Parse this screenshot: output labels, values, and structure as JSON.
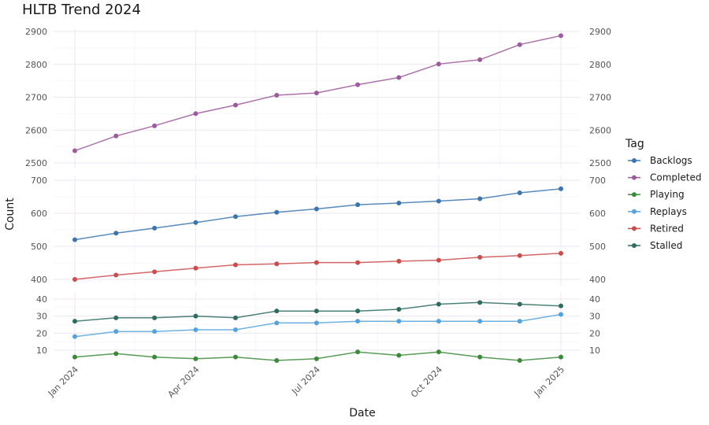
{
  "chart_data": {
    "type": "line",
    "title": "HLTB Trend 2024",
    "xlabel": "Date",
    "ylabel": "Count",
    "x": [
      "2024-01-01",
      "2024-02-01",
      "2024-03-01",
      "2024-04-01",
      "2024-05-01",
      "2024-06-01",
      "2024-07-01",
      "2024-08-01",
      "2024-09-01",
      "2024-10-01",
      "2024-11-01",
      "2024-12-01",
      "2025-01-01"
    ],
    "x_ticks": [
      {
        "date": "2024-01-01",
        "label": "Jan 2024"
      },
      {
        "date": "2024-04-01",
        "label": "Apr 2024"
      },
      {
        "date": "2024-07-01",
        "label": "Jul 2024"
      },
      {
        "date": "2024-10-01",
        "label": "Oct 2024"
      },
      {
        "date": "2025-01-01",
        "label": "Jan 2025"
      }
    ],
    "grid": true,
    "legend": {
      "title": "Tag",
      "position": "right",
      "entries": [
        "Backlogs",
        "Completed",
        "Playing",
        "Replays",
        "Retired",
        "Stalled"
      ]
    },
    "colors": {
      "Backlogs": "#3b75af",
      "Completed": "#9c5b9c",
      "Playing": "#3a8a3a",
      "Replays": "#55a3de",
      "Retired": "#cc4c4c",
      "Stalled": "#2e6b60"
    },
    "panels": [
      {
        "ylim": [
          2500,
          2900
        ],
        "ticks": [
          2500,
          2600,
          2700,
          2800,
          2900
        ],
        "series": [
          {
            "name": "Completed",
            "values": [
              2537,
              2582,
              2613,
              2650,
              2676,
              2706,
              2713,
              2738,
              2760,
              2801,
              2814,
              2860,
              2887
            ]
          }
        ]
      },
      {
        "ylim": [
          400,
          700
        ],
        "ticks": [
          400,
          500,
          600,
          700
        ],
        "series": [
          {
            "name": "Backlogs",
            "values": [
              520,
              540,
              555,
              572,
              590,
              603,
              613,
              626,
              631,
              637,
              644,
              662,
              674
            ]
          },
          {
            "name": "Retired",
            "values": [
              400,
              413,
              423,
              434,
              444,
              447,
              451,
              451,
              455,
              458,
              467,
              472,
              479
            ]
          }
        ]
      },
      {
        "ylim": [
          10,
          40
        ],
        "ticks": [
          10,
          20,
          30,
          40
        ],
        "series": [
          {
            "name": "Stalled",
            "values": [
              27,
              29,
              29,
              30,
              29,
              33,
              33,
              33,
              34,
              37,
              38,
              37,
              36
            ]
          },
          {
            "name": "Replays",
            "values": [
              18,
              21,
              21,
              22,
              22,
              26,
              26,
              27,
              27,
              27,
              27,
              27,
              31
            ]
          },
          {
            "name": "Playing",
            "values": [
              6,
              8,
              6,
              5,
              6,
              4,
              5,
              9,
              7,
              9,
              6,
              4,
              6
            ]
          }
        ]
      }
    ]
  }
}
